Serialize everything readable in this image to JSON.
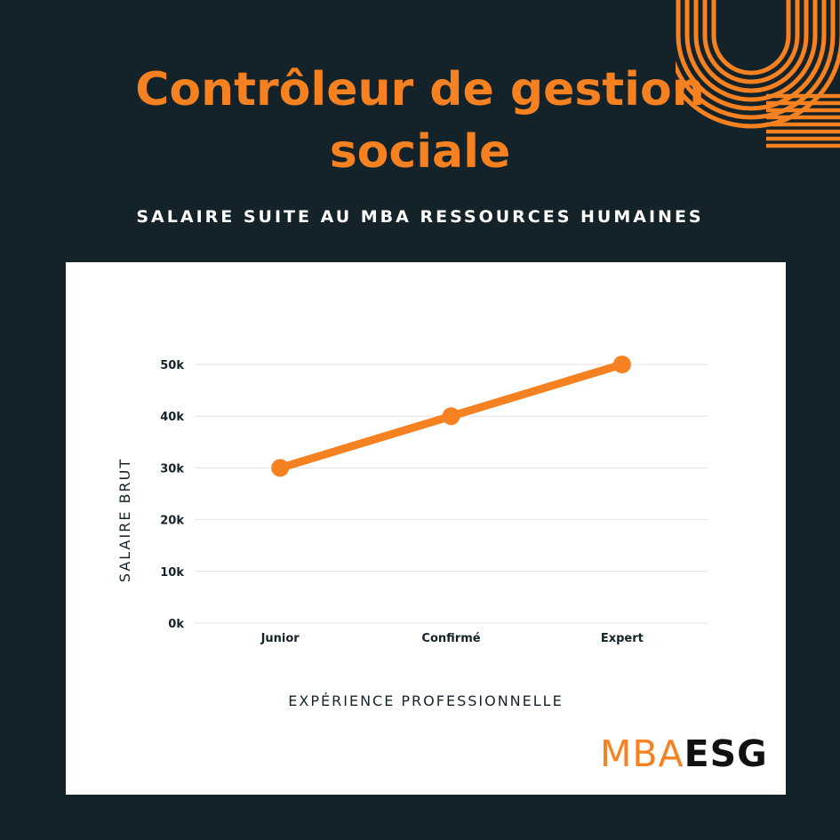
{
  "header": {
    "title_line1": "Contrôleur de gestion",
    "title_line2": "sociale",
    "subtitle": "SALAIRE SUITE AU MBA RESSOURCES HUMAINES"
  },
  "chart_data": {
    "type": "line",
    "categories": [
      "Junior",
      "Confirmé",
      "Expert"
    ],
    "values": [
      30000,
      40000,
      50000
    ],
    "xlabel": "EXPÉRIENCE PROFESSIONNELLE",
    "ylabel": "SALAIRE BRUT",
    "ylim": [
      0,
      50000
    ],
    "yticks": [
      0,
      10000,
      20000,
      30000,
      40000,
      50000
    ],
    "ytick_labels": [
      "0k",
      "10k",
      "20k",
      "30k",
      "40k",
      "50k"
    ],
    "grid": true,
    "legend": "none"
  },
  "logo": {
    "left": "MBA",
    "right": "ESG"
  },
  "colors": {
    "background": "#14232a",
    "accent": "#f68121",
    "card": "#ffffff",
    "grid": "#e3e3e3",
    "text_dark": "#14232a"
  }
}
